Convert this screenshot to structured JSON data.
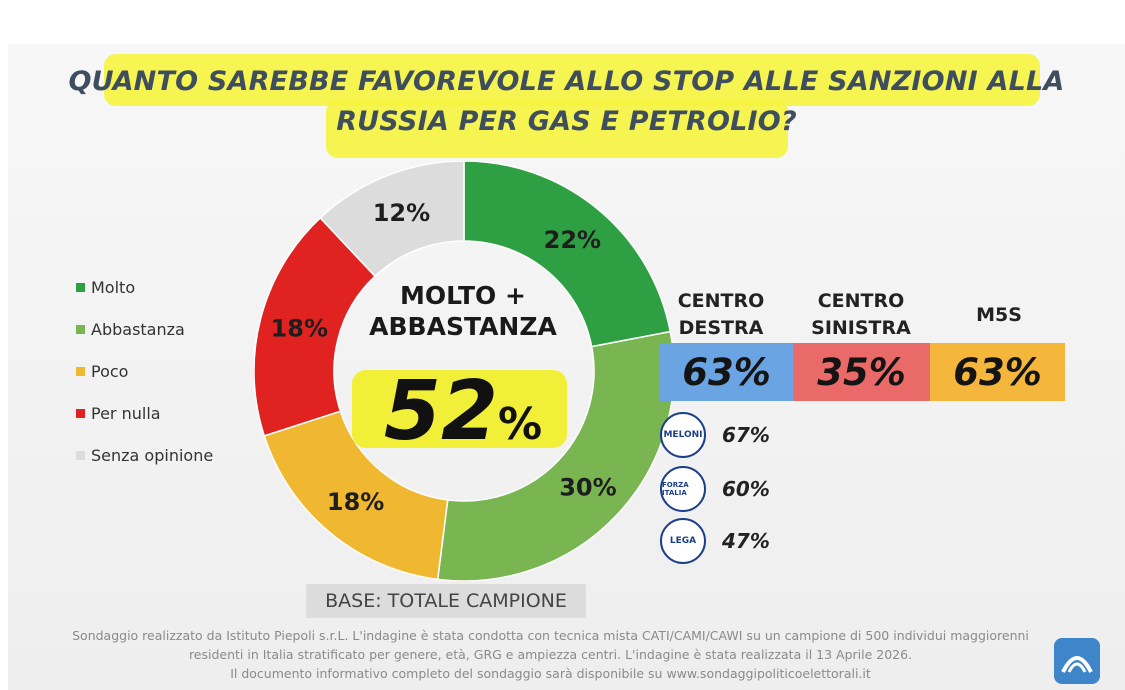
{
  "title": {
    "line1": "QUANTO SAREBBE FAVOREVOLE ALLO STOP ALLE SANZIONI ALLA",
    "line2": "RUSSIA PER GAS E PETROLIO?"
  },
  "chart_data": {
    "type": "pie",
    "style": "donut",
    "slices": [
      {
        "label": "Molto",
        "value": 22,
        "display": "22%",
        "color": "#2ea043"
      },
      {
        "label": "Abbastanza",
        "value": 30,
        "display": "30%",
        "color": "#79b651"
      },
      {
        "label": "Poco",
        "value": 18,
        "display": "18%",
        "color": "#f0b731"
      },
      {
        "label": "Per nulla",
        "value": 18,
        "display": "18%",
        "color": "#e02221"
      },
      {
        "label": "Senza opinione",
        "value": 12,
        "display": "12%",
        "color": "#dcdcdc"
      }
    ],
    "legend_placement": "left",
    "center": {
      "label": "MOLTO + ABBASTANZA",
      "value": "52",
      "unit": "%"
    }
  },
  "coalitions": [
    {
      "line1": "CENTRO",
      "line2": "DESTRA",
      "value": "63%",
      "color": "#6aa4e3"
    },
    {
      "line1": "CENTRO",
      "line2": "SINISTRA",
      "value": "35%",
      "color": "#ea6a6a"
    },
    {
      "line1": "",
      "line2": "M5S",
      "value": "63%",
      "color": "#f5b73b"
    }
  ],
  "parties": [
    {
      "logo": "fratelli-d-italia-logo",
      "logo_text": "MELONI",
      "value": "67%"
    },
    {
      "logo": "forza-italia-logo",
      "logo_text": "FORZA ITALIA",
      "value": "60%"
    },
    {
      "logo": "lega-logo",
      "logo_text": "LEGA",
      "value": "47%"
    }
  ],
  "base": "BASE: TOTALE CAMPIONE",
  "footnote": {
    "line1": "Sondaggio realizzato da Istituto Piepoli s.r.L. L'indagine è stata condotta con tecnica mista CATI/CAMI/CAWI su un campione di 500 individui maggiorenni",
    "line2": "residenti in Italia stratificato per genere, età, GRG e ampiezza centri. L'indagine è stata realizzata il 13 Aprile 2026.",
    "line3": "Il documento informativo completo del sondaggio sarà disponibile su www.sondaggipoliticoelettorali.it"
  }
}
